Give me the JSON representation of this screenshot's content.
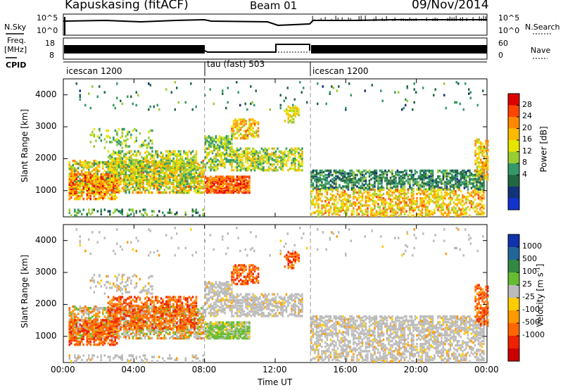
{
  "header": {
    "station": "Kapuskasing (fitACF)",
    "beam": "Beam 01",
    "date": "09/Nov/2014"
  },
  "top_panels": {
    "nsky_label": "N.Sky",
    "nsearch_label": "N.Search",
    "freq_label_line1": "Freq.",
    "freq_label_line2": "[MHz]",
    "nave_label": "Nave",
    "cpid_label": "CPID",
    "nsky_ticks": [
      "10^5",
      "10^0"
    ],
    "nsearch_ticks": [
      "10^5",
      "10^0"
    ],
    "freq_ticks": [
      "18",
      "8"
    ],
    "nave_ticks": [
      "60",
      "0"
    ],
    "cpid_segments": [
      {
        "label": "icescan 1200",
        "start": 0,
        "end": 8
      },
      {
        "label": "tau (fast) 503",
        "start": 8,
        "end": 14
      },
      {
        "label": "icescan 1200",
        "start": 14,
        "end": 24
      }
    ]
  },
  "chart_data": [
    {
      "type": "heatmap",
      "title": "Power",
      "ylabel": "Slant Range [km]",
      "xlabel": "Time UT",
      "xlim": [
        0,
        24
      ],
      "ylim": [
        180,
        4500
      ],
      "x_ticks": [
        "00:00",
        "04:00",
        "08:00",
        "12:00",
        "16:00",
        "20:00",
        "00:00"
      ],
      "y_ticks": [
        1000,
        2000,
        3000,
        4000
      ],
      "colorbar_label": "Power [dB]",
      "colorbar_ticks": [
        "28",
        "24",
        "20",
        "16",
        "12",
        "8",
        "4"
      ],
      "colorbar_colors": [
        "#dd0000",
        "#ff4400",
        "#ff8800",
        "#ffbb00",
        "#e6e600",
        "#99cc33",
        "#339966",
        "#226644",
        "#113377",
        "#1133cc"
      ],
      "mode_boundaries_hours": [
        8,
        14
      ]
    },
    {
      "type": "heatmap",
      "title": "Velocity",
      "ylabel": "Slant Range [km]",
      "xlabel": "Time UT",
      "xlim": [
        0,
        24
      ],
      "ylim": [
        180,
        4500
      ],
      "x_ticks": [
        "00:00",
        "04:00",
        "08:00",
        "12:00",
        "16:00",
        "20:00",
        "00:00"
      ],
      "y_ticks": [
        1000,
        2000,
        3000,
        4000
      ],
      "colorbar_label": "Velocity [m s^-1]",
      "colorbar_ticks": [
        "1000",
        "500",
        "100",
        "25",
        "-25",
        "-100",
        "-500",
        "-1000"
      ],
      "colorbar_colors": [
        "#1133aa",
        "#226699",
        "#338844",
        "#66bb33",
        "#bbbbbb",
        "#ffcc00",
        "#ff9900",
        "#ff6600",
        "#ee2200",
        "#cc0000"
      ],
      "mode_boundaries_hours": [
        8,
        14
      ]
    }
  ],
  "colors": {
    "ground_scatter": "#bbbbbb",
    "axis": "#000000"
  }
}
